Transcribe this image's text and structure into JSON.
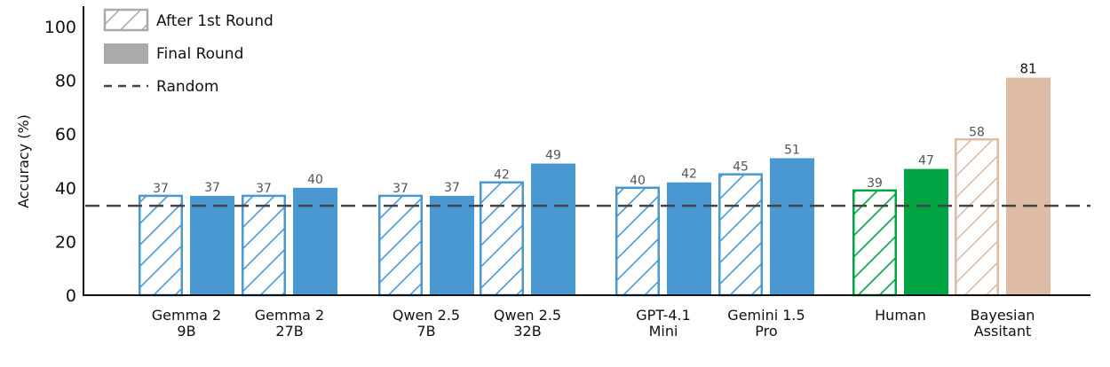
{
  "chart_data": {
    "type": "bar",
    "title": "",
    "xlabel": "",
    "ylabel": "Accuracy (%)",
    "ylim": [
      0,
      100
    ],
    "yticks": [
      0,
      20,
      40,
      60,
      80,
      100
    ],
    "grid": false,
    "legend_position": "upper-left",
    "legend": [
      {
        "label": "After 1st Round",
        "style": "hatched",
        "color": "#AAAAAA"
      },
      {
        "label": "Final Round",
        "style": "solid",
        "color": "#AAAAAA"
      },
      {
        "label": "Random",
        "style": "dashed-line",
        "color": "#444444"
      }
    ],
    "categories": [
      [
        "Gemma 2",
        "9B"
      ],
      [
        "Gemma 2",
        "27B"
      ],
      [
        "Qwen 2.5",
        "7B"
      ],
      [
        "Qwen 2.5",
        "32B"
      ],
      [
        "GPT-4.1",
        "Mini"
      ],
      [
        "Gemini 1.5",
        "Pro"
      ],
      [
        "Human"
      ],
      [
        "Bayesian",
        "Assitant"
      ]
    ],
    "series": [
      {
        "name": "After 1st Round",
        "values": [
          37,
          37,
          37,
          42,
          40,
          45,
          39,
          58
        ]
      },
      {
        "name": "Final Round",
        "values": [
          37,
          40,
          37,
          49,
          42,
          51,
          47,
          81
        ]
      }
    ],
    "category_colors": [
      "#4A98D2",
      "#4A98D2",
      "#4A98D2",
      "#4A98D2",
      "#4A98D2",
      "#4A98D2",
      "#00A443",
      "#DDBBA5"
    ],
    "random_baseline": 33.3,
    "annotations": [
      "81 label emphasized in black"
    ]
  }
}
